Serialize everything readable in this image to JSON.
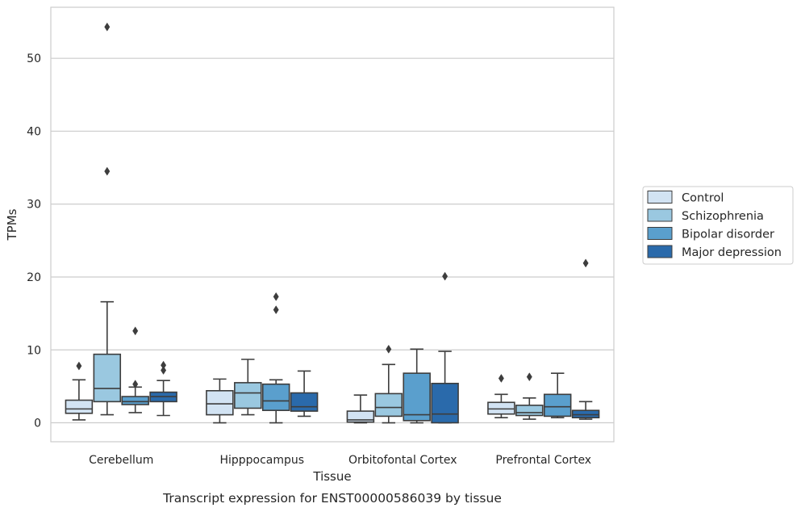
{
  "chart_data": {
    "type": "box",
    "xlabel": "Tissue",
    "ylabel": "TPMs",
    "caption": "Transcript expression for ENST00000586039 by tissue",
    "ylim": [
      -2.6,
      57
    ],
    "yticks": [
      0,
      10,
      20,
      30,
      40,
      50
    ],
    "grid": "horizontal",
    "legend_placement": "right",
    "categories": [
      "Cerebellum",
      "Hipppocampus",
      "Orbitofontal Cortex",
      "Prefrontal Cortex"
    ],
    "series": [
      {
        "name": "Control",
        "color": "#d2e3f3",
        "boxes": [
          {
            "whisker_low": 0.4,
            "q1": 1.3,
            "median": 1.9,
            "q3": 3.1,
            "whisker_high": 5.9,
            "outliers": [
              7.8
            ]
          },
          {
            "whisker_low": 0.0,
            "q1": 1.1,
            "median": 2.6,
            "q3": 4.4,
            "whisker_high": 6.0,
            "outliers": []
          },
          {
            "whisker_low": 0.0,
            "q1": 0.1,
            "median": 0.4,
            "q3": 1.6,
            "whisker_high": 3.8,
            "outliers": []
          },
          {
            "whisker_low": 0.7,
            "q1": 1.2,
            "median": 1.9,
            "q3": 2.8,
            "whisker_high": 3.9,
            "outliers": [
              6.1
            ]
          }
        ]
      },
      {
        "name": "Schizophrenia",
        "color": "#9ac8e0",
        "boxes": [
          {
            "whisker_low": 1.1,
            "q1": 2.9,
            "median": 4.7,
            "q3": 9.4,
            "whisker_high": 16.6,
            "outliers": [
              34.5,
              54.3
            ]
          },
          {
            "whisker_low": 1.1,
            "q1": 2.0,
            "median": 4.1,
            "q3": 5.5,
            "whisker_high": 8.7,
            "outliers": []
          },
          {
            "whisker_low": 0.0,
            "q1": 0.9,
            "median": 2.1,
            "q3": 4.0,
            "whisker_high": 8.0,
            "outliers": [
              10.1
            ]
          },
          {
            "whisker_low": 0.5,
            "q1": 1.0,
            "median": 1.4,
            "q3": 2.4,
            "whisker_high": 3.4,
            "outliers": [
              6.3
            ]
          }
        ]
      },
      {
        "name": "Bipolar disorder",
        "color": "#5a9fcd",
        "boxes": [
          {
            "whisker_low": 1.4,
            "q1": 2.5,
            "median": 2.9,
            "q3": 3.6,
            "whisker_high": 4.9,
            "outliers": [
              5.3,
              12.6
            ]
          },
          {
            "whisker_low": 0.0,
            "q1": 1.7,
            "median": 3.0,
            "q3": 5.3,
            "whisker_high": 5.9,
            "outliers": [
              15.5,
              17.3
            ]
          },
          {
            "whisker_low": 0.0,
            "q1": 0.3,
            "median": 1.1,
            "q3": 6.8,
            "whisker_high": 10.1,
            "outliers": []
          },
          {
            "whisker_low": 0.7,
            "q1": 0.9,
            "median": 2.2,
            "q3": 3.9,
            "whisker_high": 6.8,
            "outliers": []
          }
        ]
      },
      {
        "name": "Major depression",
        "color": "#2a6aab",
        "boxes": [
          {
            "whisker_low": 1.0,
            "q1": 2.9,
            "median": 3.6,
            "q3": 4.2,
            "whisker_high": 5.8,
            "outliers": [
              7.2,
              7.9
            ]
          },
          {
            "whisker_low": 0.9,
            "q1": 1.6,
            "median": 2.2,
            "q3": 4.1,
            "whisker_high": 7.1,
            "outliers": []
          },
          {
            "whisker_low": 0.0,
            "q1": 0.0,
            "median": 1.2,
            "q3": 5.4,
            "whisker_high": 9.8,
            "outliers": [
              20.1
            ]
          },
          {
            "whisker_low": 0.5,
            "q1": 0.7,
            "median": 1.1,
            "q3": 1.7,
            "whisker_high": 2.9,
            "outliers": [
              21.9
            ]
          }
        ]
      }
    ]
  }
}
